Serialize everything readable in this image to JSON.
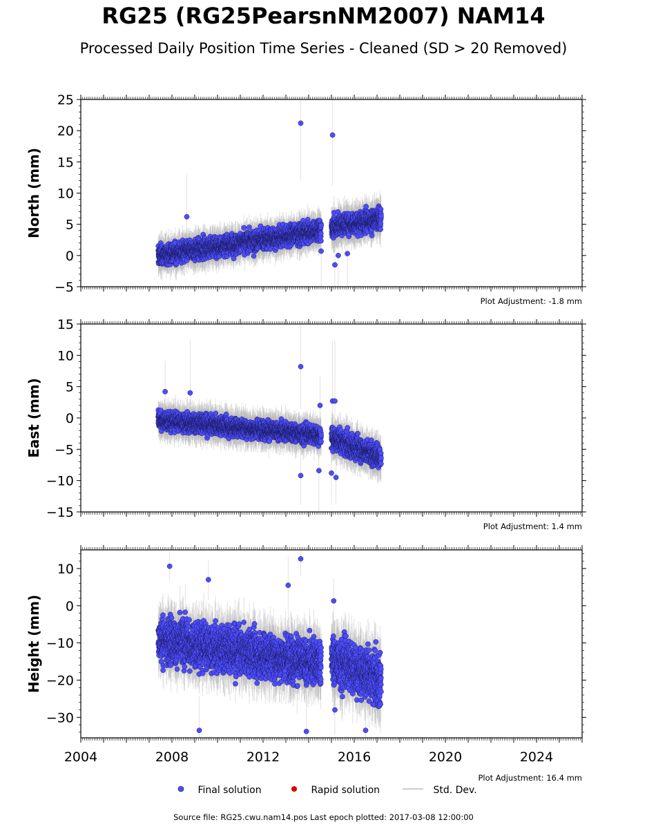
{
  "header": {
    "title": "RG25 (RG25PearsnNM2007) NAM14",
    "subtitle": "Processed Daily Position Time Series - Cleaned (SD > 20 Removed)"
  },
  "legend": {
    "final": "Final solution",
    "rapid": "Rapid solution",
    "stddev": "Std. Dev."
  },
  "footer": "Source file: RG25.cwu.nam14.pos  Last epoch plotted: 2017-03-08 12:00:00",
  "colors": {
    "final": "#4d4dff",
    "rapid": "#e00000",
    "stddev": "#bbbbbb"
  },
  "chart_data": [
    {
      "type": "scatter",
      "ylabel": "North (mm)",
      "xlim": [
        2004,
        2026
      ],
      "ylim": [
        -5,
        25
      ],
      "yticks": [
        -5,
        0,
        5,
        10,
        15,
        20,
        25
      ],
      "adjustment": "Plot Adjustment: -1.8 mm",
      "segments": [
        {
          "x_start": 2007.4,
          "x_end": 2014.55,
          "y_start": 0.0,
          "y_end": 4.0,
          "spread": 1.3,
          "sd": 1.8
        },
        {
          "x_start": 2015.0,
          "x_end": 2017.18,
          "y_start": 4.6,
          "y_end": 5.8,
          "spread": 1.4,
          "sd": 2.0
        }
      ],
      "outliers": [
        [
          2013.65,
          21.2
        ],
        [
          2015.05,
          19.3
        ],
        [
          2015.15,
          -1.5
        ],
        [
          2015.3,
          0.0
        ],
        [
          2015.7,
          0.3
        ],
        [
          2008.65,
          6.2
        ],
        [
          2014.55,
          0.7
        ]
      ]
    },
    {
      "type": "scatter",
      "ylabel": "East (mm)",
      "xlim": [
        2004,
        2026
      ],
      "ylim": [
        -15,
        15
      ],
      "yticks": [
        -15,
        -10,
        -5,
        0,
        5,
        10,
        15
      ],
      "adjustment": "Plot Adjustment: 1.4 mm",
      "segments": [
        {
          "x_start": 2007.4,
          "x_end": 2014.55,
          "y_start": -0.3,
          "y_end": -2.8,
          "spread": 1.2,
          "sd": 1.8
        },
        {
          "x_start": 2015.0,
          "x_end": 2017.18,
          "y_start": -3.2,
          "y_end": -6.3,
          "spread": 1.5,
          "sd": 2.0
        }
      ],
      "outliers": [
        [
          2013.65,
          8.2
        ],
        [
          2013.65,
          -9.2
        ],
        [
          2015.05,
          2.7
        ],
        [
          2015.15,
          2.7
        ],
        [
          2015.0,
          -8.8
        ],
        [
          2015.2,
          -9.5
        ],
        [
          2007.7,
          4.2
        ],
        [
          2008.8,
          4.0
        ],
        [
          2014.45,
          -8.4
        ],
        [
          2014.5,
          2.0
        ]
      ]
    },
    {
      "type": "scatter",
      "ylabel": "Height (mm)",
      "xlim": [
        2004,
        2026
      ],
      "ylim": [
        -35.5,
        15
      ],
      "yticks": [
        -30,
        -20,
        -10,
        0,
        10
      ],
      "xticks": [
        2004,
        2008,
        2012,
        2016,
        2020,
        2024
      ],
      "adjustment": "Plot Adjustment: 16.4 mm",
      "segments": [
        {
          "x_start": 2007.4,
          "x_end": 2014.55,
          "y_start": -9.0,
          "y_end": -15.5,
          "spread": 5.0,
          "sd": 5.0
        },
        {
          "x_start": 2015.0,
          "x_end": 2017.18,
          "y_start": -14.5,
          "y_end": -20.0,
          "spread": 5.5,
          "sd": 5.5
        }
      ],
      "outliers": [
        [
          2013.65,
          12.6
        ],
        [
          2007.9,
          10.6
        ],
        [
          2013.1,
          5.5
        ],
        [
          2009.6,
          7.0
        ],
        [
          2009.2,
          -33.5
        ],
        [
          2013.9,
          -33.8
        ],
        [
          2016.5,
          -33.5
        ],
        [
          2015.1,
          1.3
        ],
        [
          2015.15,
          -28.0
        ]
      ]
    }
  ]
}
